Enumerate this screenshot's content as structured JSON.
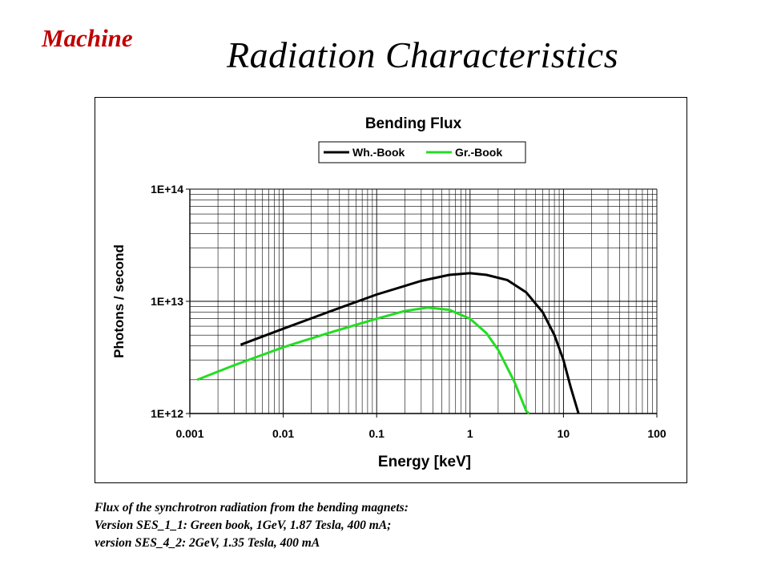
{
  "header": {
    "section": "Machine",
    "title": "Radiation Characteristics"
  },
  "caption": {
    "lines": [
      "Flux of the synchrotron radiation from the bending magnets:",
      "Version SES_1_1: Green book, 1GeV, 1.87 Tesla, 400 mA;",
      "version SES_4_2: 2GeV, 1.35 Tesla, 400 mA"
    ]
  },
  "chart_data": {
    "type": "line",
    "title": "Bending Flux",
    "xlabel": "Energy [keV]",
    "ylabel": "Photons / second",
    "x_scale": "log",
    "y_scale": "log",
    "xlim": [
      0.001,
      100
    ],
    "ylim": [
      1000000000000.0,
      100000000000000.0
    ],
    "grid": true,
    "legend_position": "top-right",
    "x_ticks": [
      "0.001",
      "0.01",
      "0.1",
      "1",
      "10",
      "100"
    ],
    "y_ticks": [
      "1E+12",
      "1E+13",
      "1E+14"
    ],
    "series": [
      {
        "name": "Wh.-Book",
        "color": "#000000",
        "points": [
          [
            0.0035,
            4100000000000.0
          ],
          [
            0.01,
            5700000000000.0
          ],
          [
            0.03,
            8000000000000.0
          ],
          [
            0.1,
            11500000000000.0
          ],
          [
            0.3,
            15200000000000.0
          ],
          [
            0.6,
            17200000000000.0
          ],
          [
            1.0,
            17800000000000.0
          ],
          [
            1.5,
            17200000000000.0
          ],
          [
            2.5,
            15500000000000.0
          ],
          [
            4.0,
            12000000000000.0
          ],
          [
            6.0,
            8000000000000.0
          ],
          [
            8.0,
            5000000000000.0
          ],
          [
            10.0,
            3000000000000.0
          ],
          [
            12.0,
            1700000000000.0
          ],
          [
            14.5,
            1000000000000.0
          ]
        ]
      },
      {
        "name": "Gr.-Book",
        "color": "#22dd22",
        "points": [
          [
            0.0012,
            2000000000000.0
          ],
          [
            0.003,
            2700000000000.0
          ],
          [
            0.01,
            3900000000000.0
          ],
          [
            0.03,
            5200000000000.0
          ],
          [
            0.1,
            7000000000000.0
          ],
          [
            0.2,
            8200000000000.0
          ],
          [
            0.35,
            8800000000000.0
          ],
          [
            0.6,
            8400000000000.0
          ],
          [
            1.0,
            7000000000000.0
          ],
          [
            1.5,
            5200000000000.0
          ],
          [
            2.0,
            3700000000000.0
          ],
          [
            3.0,
            1900000000000.0
          ],
          [
            4.0,
            1050000000000.0
          ],
          [
            4.3,
            1000000000000.0
          ]
        ]
      }
    ]
  }
}
